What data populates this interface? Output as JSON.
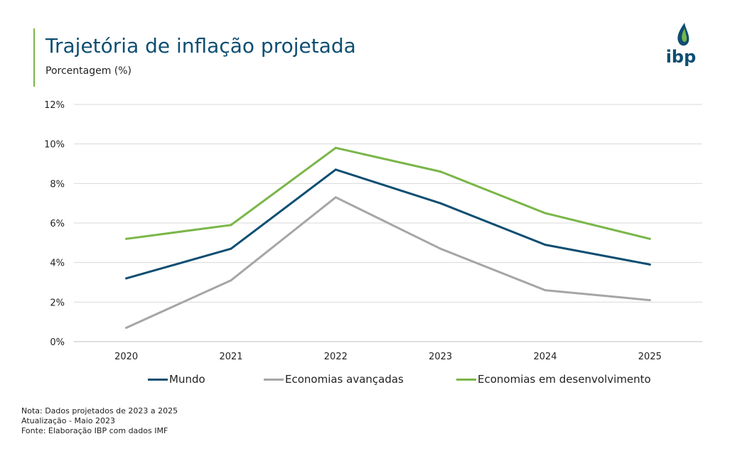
{
  "header": {
    "title": "Trajetória de inflação projetada",
    "subtitle": "Porcentagem (%)",
    "logo_text": "ibp"
  },
  "colors": {
    "accent": "#7ab648",
    "title": "#0e4e72",
    "grid": "#d9d9d9"
  },
  "chart_data": {
    "type": "line",
    "title": "Trajetória de inflação projetada",
    "ylabel": "Porcentagem (%)",
    "xlabel": "",
    "categories": [
      "2020",
      "2021",
      "2022",
      "2023",
      "2024",
      "2025"
    ],
    "y_ticks": [
      0,
      2,
      4,
      6,
      8,
      10,
      12
    ],
    "y_tick_suffix": "%",
    "ylim": [
      0,
      12
    ],
    "grid": true,
    "legend_position": "bottom",
    "series": [
      {
        "name": "Mundo",
        "color": "#0e4e72",
        "values": [
          3.2,
          4.7,
          8.7,
          7.0,
          4.9,
          3.9
        ]
      },
      {
        "name": "Economias avançadas",
        "color": "#a6a6a6",
        "values": [
          0.7,
          3.1,
          7.3,
          4.7,
          2.6,
          2.1
        ]
      },
      {
        "name": "Economias em desenvolvimento",
        "color": "#7ab648",
        "values": [
          5.2,
          5.9,
          9.8,
          8.6,
          6.5,
          5.2
        ]
      }
    ]
  },
  "notes": [
    "Nota: Dados projetados de 2023 a 2025",
    "Atualização - Maio 2023",
    "Fonte: Elaboração IBP com dados IMF"
  ]
}
